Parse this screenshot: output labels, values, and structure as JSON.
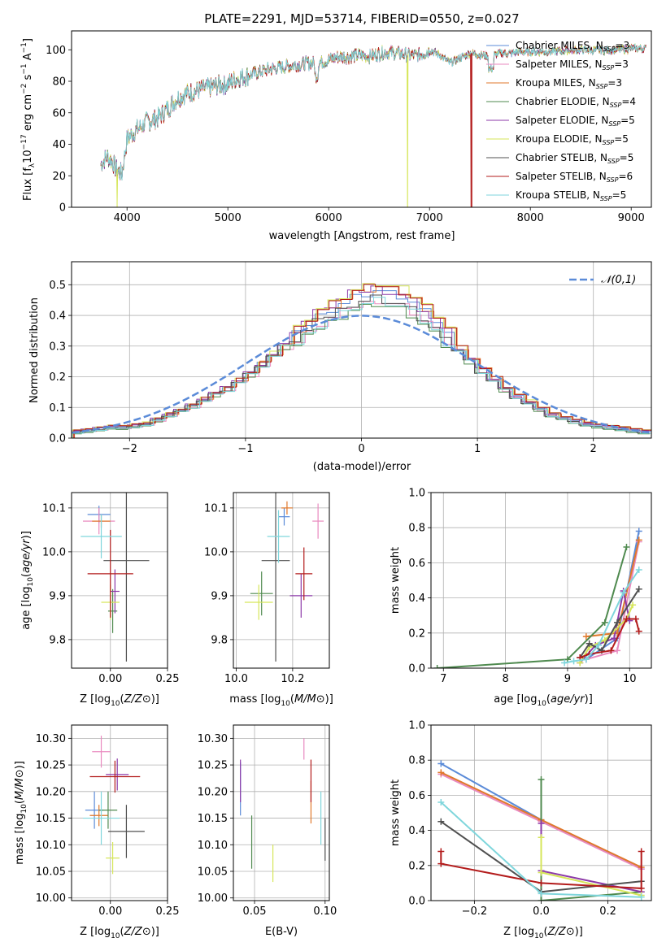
{
  "figure_title": "PLATE=2291, MJD=53714, FIBERID=0550, z=0.027",
  "model_names": [
    "Chabrier MILES",
    "Salpeter MILES",
    "Kroupa MILES",
    "Chabrier ELODIE",
    "Salpeter ELODIE",
    "Kroupa ELODIE",
    "Chabrier STELIB",
    "Salpeter STELIB",
    "Kroupa STELIB"
  ],
  "n_ssp": [
    3,
    3,
    3,
    4,
    5,
    5,
    5,
    6,
    5
  ],
  "colors": [
    "#5b8bd8",
    "#e98abf",
    "#e1792c",
    "#4f8a4f",
    "#8c3aa8",
    "#d6e65a",
    "#505050",
    "#b31b1b",
    "#7fd6dc"
  ],
  "chart_data": [
    {
      "id": "spectrum",
      "type": "line",
      "title": "PLATE=2291, MJD=53714, FIBERID=0550, z=0.027",
      "xlabel": "wavelength [Angstrom, rest frame]",
      "ylabel_parts": [
        "Flux [f",
        "λ",
        "10",
        "−17",
        " erg cm",
        "−2",
        " s",
        "−1",
        " A",
        "−1",
        "]"
      ],
      "xlim": [
        3450,
        9200
      ],
      "ylim": [
        0,
        112
      ],
      "xticks": [
        4000,
        5000,
        6000,
        7000,
        8000,
        9000
      ],
      "yticks": [
        0,
        20,
        40,
        60,
        80,
        100
      ],
      "grid": false,
      "legend_position": "top-right",
      "legend": [
        "Chabrier MILES, N_SSP=3",
        "Salpeter MILES, N_SSP=3",
        "Kroupa MILES, N_SSP=3",
        "Chabrier ELODIE, N_SSP=4",
        "Salpeter ELODIE, N_SSP=5",
        "Kroupa ELODIE, N_SSP=5",
        "Chabrier STELIB, N_SSP=5",
        "Salpeter STELIB, N_SSP=6",
        "Kroupa STELIB, N_SSP=5"
      ],
      "continuum": [
        [
          3740,
          28
        ],
        [
          3800,
          33
        ],
        [
          3850,
          30
        ],
        [
          3900,
          24
        ],
        [
          3950,
          22
        ],
        [
          4000,
          44
        ],
        [
          4100,
          50
        ],
        [
          4200,
          55
        ],
        [
          4300,
          57
        ],
        [
          4400,
          63
        ],
        [
          4500,
          70
        ],
        [
          4600,
          73
        ],
        [
          4700,
          75
        ],
        [
          4800,
          76
        ],
        [
          4900,
          78
        ],
        [
          5000,
          79
        ],
        [
          5100,
          83
        ],
        [
          5200,
          84
        ],
        [
          5300,
          86
        ],
        [
          5400,
          88
        ],
        [
          5500,
          89
        ],
        [
          5600,
          90
        ],
        [
          5700,
          91
        ],
        [
          5800,
          92
        ],
        [
          5900,
          92
        ],
        [
          6000,
          94
        ],
        [
          6100,
          96
        ],
        [
          6200,
          96
        ],
        [
          6300,
          97
        ],
        [
          6400,
          96
        ],
        [
          6500,
          98
        ],
        [
          6600,
          99
        ],
        [
          6700,
          98
        ],
        [
          6800,
          97
        ],
        [
          6900,
          97
        ],
        [
          7000,
          100
        ],
        [
          7100,
          97
        ],
        [
          7200,
          92
        ],
        [
          7300,
          95
        ],
        [
          7400,
          98
        ],
        [
          7500,
          97
        ],
        [
          7600,
          96
        ],
        [
          7700,
          98
        ],
        [
          7800,
          98
        ],
        [
          7900,
          99
        ],
        [
          8000,
          99
        ],
        [
          8200,
          99
        ],
        [
          8400,
          100
        ],
        [
          8600,
          100
        ],
        [
          8800,
          100
        ],
        [
          9000,
          101
        ],
        [
          9150,
          101
        ]
      ],
      "notes": "Dips: Kroupa ELODIE near 3900 and 6780, Salpeter STELIB near 7400 and 3930"
    },
    {
      "id": "residuals",
      "type": "histogram",
      "xlabel": "(data-model)/error",
      "ylabel": "Normed distribution",
      "xlim": [
        -2.5,
        2.5
      ],
      "ylim": [
        0,
        0.575
      ],
      "xticks": [
        -2,
        -1,
        0,
        1,
        2
      ],
      "yticks": [
        0.0,
        0.1,
        0.2,
        0.3,
        0.4,
        0.5
      ],
      "grid": true,
      "legend_position": "top-right",
      "legend": [
        "𝒩(0,1)"
      ],
      "bin_width": 0.1,
      "profile": [
        0.02,
        0.025,
        0.03,
        0.035,
        0.035,
        0.04,
        0.045,
        0.06,
        0.075,
        0.09,
        0.105,
        0.125,
        0.145,
        0.16,
        0.185,
        0.21,
        0.24,
        0.27,
        0.3,
        0.33,
        0.36,
        0.39,
        0.41,
        0.43,
        0.45,
        0.46,
        0.47,
        0.46,
        0.45,
        0.43,
        0.4,
        0.37,
        0.33,
        0.29,
        0.255,
        0.22,
        0.19,
        0.16,
        0.135,
        0.115,
        0.095,
        0.075,
        0.065,
        0.055,
        0.045,
        0.04,
        0.035,
        0.03,
        0.025,
        0.02
      ],
      "reference": "standard normal (dashed)"
    },
    {
      "id": "age_vs_Z",
      "type": "errorbar",
      "xlabel": "Z [log10(Z/Z⊙)]",
      "ylabel": "age [log10(age/yr)]",
      "xlim": [
        -0.17,
        0.25
      ],
      "ylim": [
        9.735,
        10.135
      ],
      "xticks": [
        0.0,
        0.25
      ],
      "yticks": [
        9.8,
        9.9,
        10.0,
        10.1
      ],
      "grid": true,
      "points": [
        [
          -0.05,
          10.085,
          0.05,
          0.02
        ],
        [
          -0.05,
          10.07,
          0.07,
          0.03
        ],
        [
          -0.04,
          10.07,
          0.04,
          0.015
        ],
        [
          0.01,
          9.865,
          0.02,
          0.05
        ],
        [
          0.02,
          9.91,
          0.02,
          0.05
        ],
        [
          0.0,
          9.885,
          0.04,
          0.04
        ],
        [
          0.07,
          9.98,
          0.1,
          0.23
        ],
        [
          0.0,
          9.95,
          0.1,
          0.1
        ],
        [
          -0.04,
          10.035,
          0.09,
          0.05
        ]
      ]
    },
    {
      "id": "age_vs_mass",
      "type": "errorbar",
      "xlabel": "mass [log10(M/M⊙)]",
      "ylabel": "",
      "xlim": [
        9.99,
        10.33
      ],
      "ylim": [
        9.735,
        10.135
      ],
      "xticks": [
        10.0,
        10.2
      ],
      "yticks": [
        9.8,
        9.9,
        10.0,
        10.1
      ],
      "grid": true,
      "points": [
        [
          10.17,
          10.08,
          0.02,
          0.02
        ],
        [
          10.29,
          10.07,
          0.02,
          0.04
        ],
        [
          10.18,
          10.1,
          0.02,
          0.015
        ],
        [
          10.09,
          9.905,
          0.04,
          0.05
        ],
        [
          10.23,
          9.9,
          0.04,
          0.05
        ],
        [
          10.08,
          9.885,
          0.05,
          0.04
        ],
        [
          10.14,
          9.98,
          0.05,
          0.23
        ],
        [
          10.24,
          9.95,
          0.03,
          0.06
        ],
        [
          10.15,
          10.035,
          0.04,
          0.06
        ]
      ]
    },
    {
      "id": "weight_vs_age",
      "type": "line",
      "xlabel": "age  [log10(age/yr)]",
      "ylabel": "mass weight",
      "xlim": [
        6.8,
        10.35
      ],
      "ylim": [
        0,
        1.0
      ],
      "xticks": [
        7,
        8,
        9,
        10
      ],
      "yticks": [
        0.0,
        0.2,
        0.4,
        0.6,
        0.8,
        1.0
      ],
      "grid": true,
      "series": [
        {
          "points": [
            [
              9.3,
              0.05
            ],
            [
              9.8,
              0.17
            ],
            [
              10.15,
              0.78
            ]
          ]
        },
        {
          "points": [
            [
              9.3,
              0.05
            ],
            [
              9.8,
              0.1
            ],
            [
              10.15,
              0.72
            ]
          ]
        },
        {
          "points": [
            [
              9.3,
              0.18
            ],
            [
              9.8,
              0.2
            ],
            [
              10.15,
              0.73
            ]
          ]
        },
        {
          "points": [
            [
              6.9,
              0.0
            ],
            [
              9.0,
              0.05
            ],
            [
              9.6,
              0.26
            ],
            [
              9.95,
              0.69
            ]
          ]
        },
        {
          "points": [
            [
              9.2,
              0.03
            ],
            [
              9.45,
              0.13
            ],
            [
              9.75,
              0.17
            ],
            [
              9.9,
              0.44
            ],
            [
              10.0,
              0.27
            ]
          ]
        },
        {
          "points": [
            [
              9.2,
              0.03
            ],
            [
              9.35,
              0.12
            ],
            [
              9.6,
              0.16
            ],
            [
              9.95,
              0.28
            ],
            [
              10.05,
              0.36
            ]
          ]
        },
        {
          "points": [
            [
              9.2,
              0.06
            ],
            [
              9.35,
              0.14
            ],
            [
              9.55,
              0.1
            ],
            [
              9.8,
              0.26
            ],
            [
              10.15,
              0.45
            ]
          ]
        },
        {
          "points": [
            [
              9.2,
              0.06
            ],
            [
              9.35,
              0.08
            ],
            [
              9.7,
              0.1
            ],
            [
              9.95,
              0.28
            ],
            [
              10.1,
              0.28
            ],
            [
              10.15,
              0.21
            ]
          ]
        },
        {
          "points": [
            [
              8.95,
              0.03
            ],
            [
              9.1,
              0.04
            ],
            [
              9.3,
              0.05
            ],
            [
              9.5,
              0.13
            ],
            [
              9.9,
              0.43
            ],
            [
              10.15,
              0.56
            ]
          ]
        }
      ]
    },
    {
      "id": "mass_vs_Z",
      "type": "errorbar",
      "xlabel": "Z [log10(Z/Z⊙)]",
      "ylabel": "mass [log10(M/M⊙)]",
      "xlim": [
        -0.17,
        0.25
      ],
      "ylim": [
        9.995,
        10.325
      ],
      "xticks": [
        0.0,
        0.25
      ],
      "yticks": [
        10.0,
        10.05,
        10.1,
        10.15,
        10.2,
        10.25,
        10.3
      ],
      "grid": true,
      "points": [
        [
          -0.07,
          10.165,
          0.04,
          0.035
        ],
        [
          -0.04,
          10.275,
          0.04,
          0.03
        ],
        [
          -0.05,
          10.155,
          0.04,
          0.02
        ],
        [
          -0.01,
          10.165,
          0.04,
          0.035
        ],
        [
          0.03,
          10.232,
          0.05,
          0.03
        ],
        [
          0.01,
          10.075,
          0.03,
          0.03
        ],
        [
          0.07,
          10.125,
          0.08,
          0.05
        ],
        [
          0.02,
          10.228,
          0.11,
          0.03
        ],
        [
          -0.04,
          10.15,
          0.08,
          0.05
        ]
      ]
    },
    {
      "id": "mass_vs_EBV",
      "type": "errorbar",
      "xlabel": "E(B-V)",
      "ylabel": "",
      "xlim": [
        0.035,
        0.103
      ],
      "ylim": [
        9.995,
        10.325
      ],
      "xticks": [
        0.05,
        0.1
      ],
      "yticks": [
        10.0,
        10.05,
        10.1,
        10.15,
        10.2,
        10.25,
        10.3
      ],
      "grid": true,
      "points": [
        [
          0.04,
          10.205,
          0,
          0.05
        ],
        [
          0.085,
          10.28,
          0,
          0.02
        ],
        [
          0.09,
          10.18,
          0,
          0.04
        ],
        [
          0.048,
          10.105,
          0,
          0.05
        ],
        [
          0.04,
          10.22,
          0,
          0.04
        ],
        [
          0.063,
          10.065,
          0,
          0.035
        ],
        [
          0.1,
          10.11,
          0,
          0.04
        ],
        [
          0.09,
          10.22,
          0,
          0.04
        ],
        [
          0.097,
          10.15,
          0,
          0.05
        ]
      ]
    },
    {
      "id": "weight_vs_Z",
      "type": "line",
      "xlabel": "Z [log10(Z/Z⊙)]",
      "ylabel": "mass weight",
      "xlim": [
        -0.33,
        0.33
      ],
      "ylim": [
        0,
        1.0
      ],
      "xticks": [
        -0.2,
        0.0,
        0.2
      ],
      "yticks": [
        0.0,
        0.2,
        0.4,
        0.6,
        0.8,
        1.0
      ],
      "grid": true,
      "series": [
        {
          "points": [
            [
              -0.3,
              0.78
            ],
            [
              0.0,
              0.46
            ],
            [
              0.3,
              0.18
            ]
          ]
        },
        {
          "points": [
            [
              -0.3,
              0.72
            ],
            [
              0.0,
              0.45
            ],
            [
              0.3,
              0.18
            ]
          ]
        },
        {
          "points": [
            [
              -0.3,
              0.73
            ],
            [
              0.0,
              0.46
            ],
            [
              0.3,
              0.19
            ]
          ]
        },
        {
          "points": [
            [
              0.0,
              0.69
            ],
            [
              0.0,
              0.0
            ],
            [
              0.3,
              0.05
            ]
          ]
        },
        {
          "points": [
            [
              0.0,
              0.44
            ],
            [
              0.0,
              0.17
            ],
            [
              0.3,
              0.05
            ]
          ]
        },
        {
          "points": [
            [
              0.0,
              0.36
            ],
            [
              0.0,
              0.16
            ],
            [
              0.3,
              0.03
            ]
          ]
        },
        {
          "points": [
            [
              -0.3,
              0.45
            ],
            [
              0.0,
              0.05
            ],
            [
              0.3,
              0.11
            ]
          ]
        },
        {
          "points": [
            [
              -0.3,
              0.28
            ],
            [
              -0.3,
              0.21
            ],
            [
              0.0,
              0.1
            ],
            [
              0.3,
              0.07
            ],
            [
              0.3,
              0.28
            ]
          ]
        },
        {
          "points": [
            [
              -0.3,
              0.56
            ],
            [
              0.0,
              0.04
            ],
            [
              0.3,
              0.02
            ]
          ]
        }
      ]
    }
  ]
}
